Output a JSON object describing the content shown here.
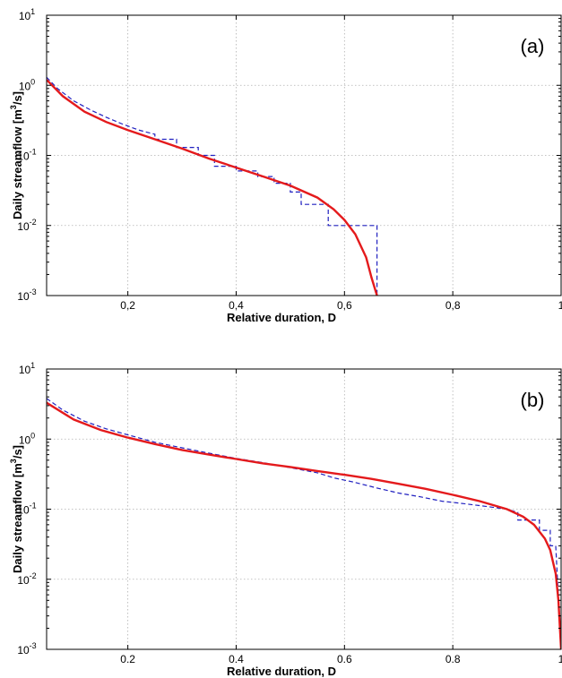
{
  "chart_data": [
    {
      "type": "line",
      "panel_label": "(a)",
      "xlabel": "Relative duration, D",
      "ylabel_parts": [
        "Daily streamflow [m",
        "3",
        "/s]"
      ],
      "xlim": [
        0.05,
        1
      ],
      "ylim": [
        0.001,
        10
      ],
      "yscale": "log",
      "grid": true,
      "xticks": [
        0.2,
        0.4,
        0.6,
        0.8,
        1
      ],
      "xtick_labels": [
        "0,2",
        "0,4",
        "0,6",
        "0,8",
        "1"
      ],
      "yticks": [
        0.001,
        0.01,
        0.1,
        1,
        10
      ],
      "ytick_labels": [
        {
          "base": "10",
          "exp": "-3"
        },
        {
          "base": "10",
          "exp": "-2"
        },
        {
          "base": "10",
          "exp": "-1"
        },
        {
          "base": "10",
          "exp": "0"
        },
        {
          "base": "10",
          "exp": "1"
        }
      ],
      "series": [
        {
          "style": "dashed",
          "color": "#2020c0",
          "x": [
            0.05,
            0.07,
            0.1,
            0.13,
            0.16,
            0.19,
            0.22,
            0.25,
            0.25,
            0.29,
            0.29,
            0.33,
            0.33,
            0.36,
            0.36,
            0.4,
            0.4,
            0.44,
            0.44,
            0.47,
            0.47,
            0.5,
            0.5,
            0.52,
            0.52,
            0.57,
            0.57,
            0.66,
            0.66
          ],
          "y": [
            1.3,
            0.9,
            0.6,
            0.45,
            0.35,
            0.28,
            0.23,
            0.2,
            0.17,
            0.17,
            0.13,
            0.13,
            0.1,
            0.1,
            0.07,
            0.07,
            0.06,
            0.06,
            0.05,
            0.05,
            0.04,
            0.04,
            0.03,
            0.03,
            0.02,
            0.02,
            0.01,
            0.01,
            0.001
          ]
        },
        {
          "style": "solid",
          "color": "#e41a1c",
          "x": [
            0.05,
            0.08,
            0.12,
            0.16,
            0.2,
            0.25,
            0.3,
            0.35,
            0.4,
            0.45,
            0.5,
            0.55,
            0.58,
            0.6,
            0.62,
            0.64,
            0.65,
            0.66
          ],
          "y": [
            1.2,
            0.7,
            0.42,
            0.3,
            0.23,
            0.17,
            0.125,
            0.09,
            0.067,
            0.05,
            0.037,
            0.025,
            0.017,
            0.012,
            0.0075,
            0.0035,
            0.0018,
            0.001
          ]
        }
      ]
    },
    {
      "type": "line",
      "panel_label": "(b)",
      "xlabel": "Relative duration, D",
      "ylabel_parts": [
        "Daily streamflow [m",
        "3",
        "/s]"
      ],
      "xlim": [
        0.05,
        1
      ],
      "ylim": [
        0.001,
        10
      ],
      "yscale": "log",
      "grid": true,
      "xticks": [
        0.2,
        0.4,
        0.6,
        0.8,
        1
      ],
      "xtick_labels": [
        "0.2",
        "0.4",
        "0.6",
        "0.8",
        "1"
      ],
      "yticks": [
        0.001,
        0.01,
        0.1,
        1,
        10
      ],
      "ytick_labels": [
        {
          "base": "10",
          "exp": "-3"
        },
        {
          "base": "10",
          "exp": "-2"
        },
        {
          "base": "10",
          "exp": "-1"
        },
        {
          "base": "10",
          "exp": "0"
        },
        {
          "base": "10",
          "exp": "1"
        }
      ],
      "series": [
        {
          "style": "dashed",
          "color": "#2020c0",
          "x": [
            0.05,
            0.08,
            0.12,
            0.16,
            0.2,
            0.25,
            0.3,
            0.35,
            0.4,
            0.45,
            0.5,
            0.55,
            0.58,
            0.62,
            0.66,
            0.7,
            0.74,
            0.78,
            0.82,
            0.86,
            0.9,
            0.92,
            0.92,
            0.96,
            0.96,
            0.98,
            0.98,
            0.99,
            1.0
          ],
          "y": [
            3.8,
            2.6,
            1.8,
            1.4,
            1.15,
            0.9,
            0.75,
            0.63,
            0.53,
            0.46,
            0.39,
            0.33,
            0.28,
            0.24,
            0.2,
            0.17,
            0.15,
            0.13,
            0.12,
            0.11,
            0.1,
            0.09,
            0.07,
            0.07,
            0.05,
            0.05,
            0.03,
            0.03,
            0.001
          ]
        },
        {
          "style": "solid",
          "color": "#e41a1c",
          "x": [
            0.05,
            0.1,
            0.15,
            0.2,
            0.25,
            0.3,
            0.35,
            0.4,
            0.45,
            0.5,
            0.55,
            0.6,
            0.65,
            0.7,
            0.75,
            0.8,
            0.85,
            0.9,
            0.93,
            0.95,
            0.97,
            0.98,
            0.99,
            0.995,
            1.0
          ],
          "y": [
            3.3,
            1.9,
            1.35,
            1.05,
            0.85,
            0.7,
            0.6,
            0.52,
            0.45,
            0.4,
            0.35,
            0.31,
            0.27,
            0.23,
            0.195,
            0.16,
            0.13,
            0.1,
            0.078,
            0.06,
            0.038,
            0.026,
            0.012,
            0.005,
            0.001
          ]
        }
      ]
    }
  ]
}
